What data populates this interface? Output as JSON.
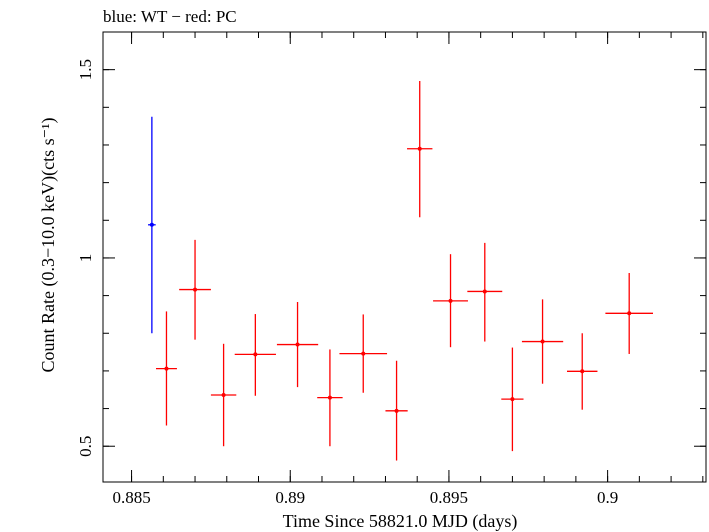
{
  "chart_data": {
    "type": "scatter",
    "title": "blue: WT − red: PC",
    "xlabel": "Time Since 58821.0 MJD (days)",
    "ylabel": "Count Rate (0.3−10.0 keV)(cts s⁻¹)",
    "xlim": [
      0.8841,
      0.9031
    ],
    "ylim": [
      0.405,
      1.6
    ],
    "x_ticks": [
      {
        "value": 0.885,
        "label": "0.885"
      },
      {
        "value": 0.89,
        "label": "0.89"
      },
      {
        "value": 0.895,
        "label": "0.895"
      },
      {
        "value": 0.9,
        "label": "0.9"
      }
    ],
    "y_ticks": [
      {
        "value": 0.5,
        "label": "0.5"
      },
      {
        "value": 1.0,
        "label": "1"
      },
      {
        "value": 1.5,
        "label": "1.5"
      }
    ],
    "grid": false,
    "series": [
      {
        "name": "WT",
        "color": "#0000ff",
        "points": [
          {
            "x": 0.88564,
            "xerr": 0.00012,
            "y": 1.088,
            "ylo": 0.8,
            "yhi": 1.375
          }
        ]
      },
      {
        "name": "PC",
        "color": "#ff0000",
        "points": [
          {
            "x": 0.8861,
            "xerr": 0.00033,
            "y": 0.706,
            "ylo": 0.555,
            "yhi": 0.858
          },
          {
            "x": 0.887,
            "xerr": 0.0005,
            "y": 0.916,
            "ylo": 0.783,
            "yhi": 1.048
          },
          {
            "x": 0.8879,
            "xerr": 0.0004,
            "y": 0.636,
            "ylo": 0.5,
            "yhi": 0.772
          },
          {
            "x": 0.8889,
            "xerr": 0.00065,
            "y": 0.744,
            "ylo": 0.634,
            "yhi": 0.851
          },
          {
            "x": 0.89023,
            "xerr": 0.00065,
            "y": 0.77,
            "ylo": 0.657,
            "yhi": 0.883
          },
          {
            "x": 0.89125,
            "xerr": 0.0004,
            "y": 0.629,
            "ylo": 0.5,
            "yhi": 0.757
          },
          {
            "x": 0.8923,
            "xerr": 0.00075,
            "y": 0.746,
            "ylo": 0.642,
            "yhi": 0.85
          },
          {
            "x": 0.89335,
            "xerr": 0.00035,
            "y": 0.594,
            "ylo": 0.462,
            "yhi": 0.727
          },
          {
            "x": 0.89408,
            "xerr": 0.0004,
            "y": 1.29,
            "ylo": 1.108,
            "yhi": 1.47
          },
          {
            "x": 0.89505,
            "xerr": 0.00055,
            "y": 0.886,
            "ylo": 0.763,
            "yhi": 1.01
          },
          {
            "x": 0.89613,
            "xerr": 0.00055,
            "y": 0.911,
            "ylo": 0.778,
            "yhi": 1.04
          },
          {
            "x": 0.897,
            "xerr": 0.00035,
            "y": 0.625,
            "ylo": 0.487,
            "yhi": 0.762
          },
          {
            "x": 0.89795,
            "xerr": 0.00065,
            "y": 0.778,
            "ylo": 0.666,
            "yhi": 0.89
          },
          {
            "x": 0.8992,
            "xerr": 0.00048,
            "y": 0.699,
            "ylo": 0.597,
            "yhi": 0.8
          },
          {
            "x": 0.90068,
            "xerr": 0.00075,
            "y": 0.853,
            "ylo": 0.745,
            "yhi": 0.96
          }
        ]
      }
    ]
  }
}
